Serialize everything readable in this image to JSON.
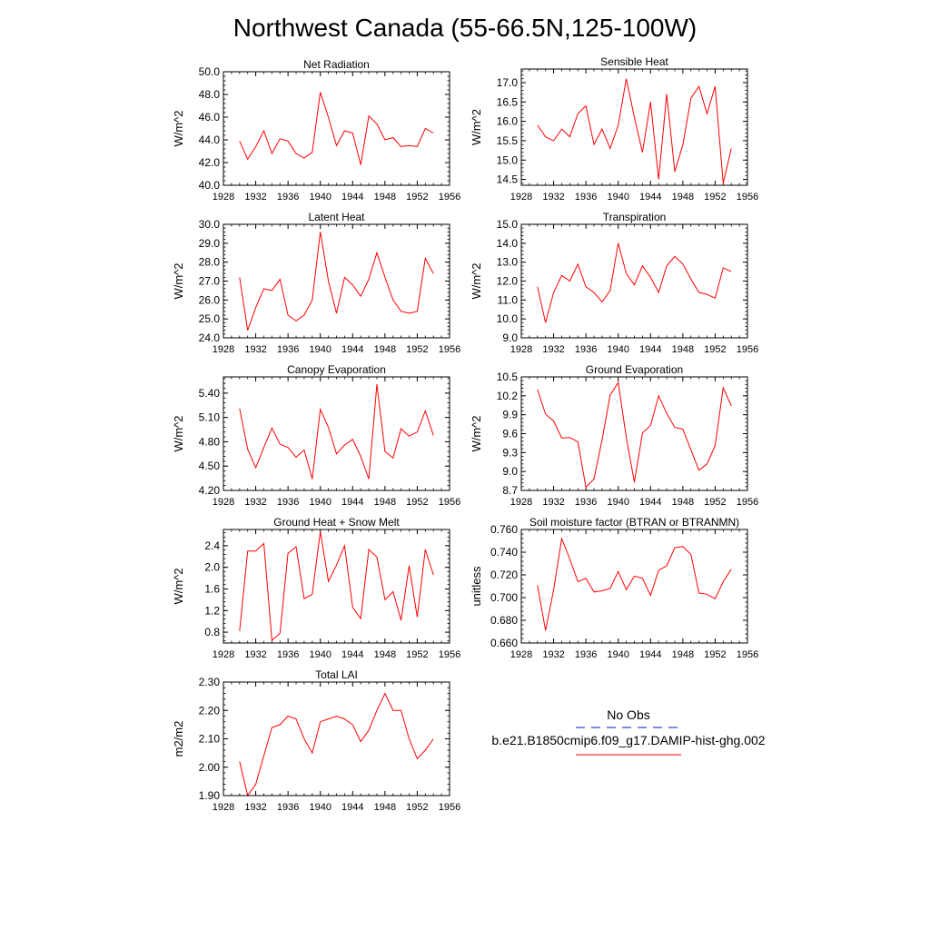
{
  "figure": {
    "title": "Northwest Canada (55-66.5N,125-100W)"
  },
  "legend": {
    "obs_label": "No Obs",
    "model_label": "b.e21.B1850cmip6.f09_g17.DAMIP-hist-ghg.002",
    "obs_color": "#3344cc",
    "model_color": "#ff0000"
  },
  "chart_data": [
    {
      "type": "line",
      "title": "Net Radiation",
      "ylabel": "W/m^2",
      "xlim": [
        1928,
        1956
      ],
      "ylim": [
        40.0,
        50.0
      ],
      "xticks": [
        "1928",
        "1932",
        "1936",
        "1940",
        "1944",
        "1948",
        "1952",
        "1956"
      ],
      "yticks": [
        "40.0",
        "42.0",
        "44.0",
        "46.0",
        "48.0",
        "50.0"
      ],
      "x": [
        1930,
        1931,
        1932,
        1933,
        1934,
        1935,
        1936,
        1937,
        1938,
        1939,
        1940,
        1941,
        1942,
        1943,
        1944,
        1945,
        1946,
        1947,
        1948,
        1949,
        1950,
        1951,
        1952,
        1953,
        1954
      ],
      "series": [
        {
          "values": [
            43.9,
            42.3,
            43.4,
            44.8,
            42.8,
            44.1,
            43.9,
            42.8,
            42.4,
            42.9,
            48.2,
            46.0,
            43.5,
            44.8,
            44.6,
            41.8,
            46.1,
            45.4,
            44.0,
            44.2,
            43.4,
            43.5,
            43.4,
            45.0,
            44.6
          ]
        }
      ]
    },
    {
      "type": "line",
      "title": "Sensible Heat",
      "ylabel": "W/m^2",
      "xlim": [
        1928,
        1956
      ],
      "ylim": [
        14.35,
        17.35
      ],
      "xticks": [
        "1928",
        "1932",
        "1936",
        "1940",
        "1944",
        "1948",
        "1952",
        "1956"
      ],
      "yticks": [
        "14.5",
        "15.0",
        "15.5",
        "16.0",
        "16.5",
        "17.0"
      ],
      "x": [
        1930,
        1931,
        1932,
        1933,
        1934,
        1935,
        1936,
        1937,
        1938,
        1939,
        1940,
        1941,
        1942,
        1943,
        1944,
        1945,
        1946,
        1947,
        1948,
        1949,
        1950,
        1951,
        1952,
        1953,
        1954
      ],
      "series": [
        {
          "values": [
            15.9,
            15.6,
            15.5,
            15.8,
            15.6,
            16.2,
            16.4,
            15.4,
            15.8,
            15.3,
            15.9,
            17.1,
            16.1,
            15.2,
            16.5,
            14.5,
            16.7,
            14.7,
            15.4,
            16.6,
            16.9,
            16.2,
            16.9,
            14.4,
            15.3
          ]
        }
      ]
    },
    {
      "type": "line",
      "title": "Latent Heat",
      "ylabel": "W/m^2",
      "xlim": [
        1928,
        1956
      ],
      "ylim": [
        24.0,
        30.0
      ],
      "xticks": [
        "1928",
        "1932",
        "1936",
        "1940",
        "1944",
        "1948",
        "1952",
        "1956"
      ],
      "yticks": [
        "24.0",
        "25.0",
        "26.0",
        "27.0",
        "28.0",
        "29.0",
        "30.0"
      ],
      "x": [
        1930,
        1931,
        1932,
        1933,
        1934,
        1935,
        1936,
        1937,
        1938,
        1939,
        1940,
        1941,
        1942,
        1943,
        1944,
        1945,
        1946,
        1947,
        1948,
        1949,
        1950,
        1951,
        1952,
        1953,
        1954
      ],
      "series": [
        {
          "values": [
            27.2,
            24.4,
            25.6,
            26.6,
            26.5,
            27.1,
            25.2,
            24.9,
            25.2,
            26.0,
            29.6,
            27.0,
            25.3,
            27.2,
            26.8,
            26.2,
            27.1,
            28.5,
            27.2,
            26.0,
            25.4,
            25.3,
            25.4,
            28.2,
            27.4
          ]
        }
      ]
    },
    {
      "type": "line",
      "title": "Transpiration",
      "ylabel": "W/m^2",
      "xlim": [
        1928,
        1956
      ],
      "ylim": [
        9.0,
        15.0
      ],
      "xticks": [
        "1928",
        "1932",
        "1936",
        "1940",
        "1944",
        "1948",
        "1952",
        "1956"
      ],
      "yticks": [
        "9.0",
        "10.0",
        "11.0",
        "12.0",
        "13.0",
        "14.0",
        "15.0"
      ],
      "x": [
        1930,
        1931,
        1932,
        1933,
        1934,
        1935,
        1936,
        1937,
        1938,
        1939,
        1940,
        1941,
        1942,
        1943,
        1944,
        1945,
        1946,
        1947,
        1948,
        1949,
        1950,
        1951,
        1952,
        1953,
        1954
      ],
      "series": [
        {
          "values": [
            11.7,
            9.8,
            11.4,
            12.3,
            12.0,
            12.9,
            11.7,
            11.4,
            10.9,
            11.5,
            14.0,
            12.4,
            11.8,
            12.8,
            12.2,
            11.4,
            12.8,
            13.3,
            12.9,
            12.1,
            11.4,
            11.3,
            11.1,
            12.7,
            12.5
          ]
        }
      ]
    },
    {
      "type": "line",
      "title": "Canopy Evaporation",
      "ylabel": "W/m^2",
      "xlim": [
        1928,
        1956
      ],
      "ylim": [
        4.2,
        5.6
      ],
      "xticks": [
        "1928",
        "1932",
        "1936",
        "1940",
        "1944",
        "1948",
        "1952",
        "1956"
      ],
      "yticks": [
        "4.20",
        "4.50",
        "4.80",
        "5.10",
        "5.40"
      ],
      "x": [
        1930,
        1931,
        1932,
        1933,
        1934,
        1935,
        1936,
        1937,
        1938,
        1939,
        1940,
        1941,
        1942,
        1943,
        1944,
        1945,
        1946,
        1947,
        1948,
        1949,
        1950,
        1951,
        1952,
        1953,
        1954
      ],
      "series": [
        {
          "values": [
            5.21,
            4.71,
            4.48,
            4.73,
            4.97,
            4.77,
            4.73,
            4.61,
            4.7,
            4.34,
            5.2,
            4.98,
            4.65,
            4.76,
            4.83,
            4.62,
            4.34,
            5.51,
            4.68,
            4.6,
            4.96,
            4.87,
            4.92,
            5.18,
            4.88
          ]
        }
      ]
    },
    {
      "type": "line",
      "title": "Ground Evaporation",
      "ylabel": "W/m^2",
      "xlim": [
        1928,
        1956
      ],
      "ylim": [
        8.7,
        10.5
      ],
      "xticks": [
        "1928",
        "1932",
        "1936",
        "1940",
        "1944",
        "1948",
        "1952",
        "1956"
      ],
      "yticks": [
        "8.7",
        "9.0",
        "9.3",
        "9.6",
        "9.9",
        "10.2",
        "10.5"
      ],
      "x": [
        1930,
        1931,
        1932,
        1933,
        1934,
        1935,
        1936,
        1937,
        1938,
        1939,
        1940,
        1941,
        1942,
        1943,
        1944,
        1945,
        1946,
        1947,
        1948,
        1949,
        1950,
        1951,
        1952,
        1953,
        1954
      ],
      "series": [
        {
          "values": [
            10.3,
            9.91,
            9.8,
            9.53,
            9.54,
            9.47,
            8.75,
            8.88,
            9.5,
            10.21,
            10.41,
            9.54,
            8.83,
            9.61,
            9.73,
            10.2,
            9.92,
            9.7,
            9.67,
            9.34,
            9.02,
            9.12,
            9.41,
            10.33,
            10.04
          ]
        }
      ]
    },
    {
      "type": "line",
      "title": "Ground Heat + Snow Melt",
      "ylabel": "W/m^2",
      "xlim": [
        1928,
        1956
      ],
      "ylim": [
        0.6,
        2.7
      ],
      "xticks": [
        "1928",
        "1932",
        "1936",
        "1940",
        "1944",
        "1948",
        "1952",
        "1956"
      ],
      "yticks": [
        "0.8",
        "1.2",
        "1.6",
        "2.0",
        "2.4"
      ],
      "x": [
        1930,
        1931,
        1932,
        1933,
        1934,
        1935,
        1936,
        1937,
        1938,
        1939,
        1940,
        1941,
        1942,
        1943,
        1944,
        1945,
        1946,
        1947,
        1948,
        1949,
        1950,
        1951,
        1952,
        1953,
        1954
      ],
      "series": [
        {
          "values": [
            0.82,
            2.3,
            2.3,
            2.44,
            0.65,
            0.78,
            2.26,
            2.38,
            1.42,
            1.5,
            2.66,
            1.74,
            2.04,
            2.4,
            1.26,
            1.05,
            2.33,
            2.19,
            1.4,
            1.55,
            1.02,
            2.03,
            1.08,
            2.33,
            1.86
          ]
        }
      ]
    },
    {
      "type": "line",
      "title": "Soil moisture factor (BTRAN or BTRANMN)",
      "ylabel": "unitless",
      "xlim": [
        1928,
        1956
      ],
      "ylim": [
        0.66,
        0.76
      ],
      "xticks": [
        "1928",
        "1932",
        "1936",
        "1940",
        "1944",
        "1948",
        "1952",
        "1956"
      ],
      "yticks": [
        "0.660",
        "0.680",
        "0.700",
        "0.720",
        "0.740",
        "0.760"
      ],
      "x": [
        1930,
        1931,
        1932,
        1933,
        1934,
        1935,
        1936,
        1937,
        1938,
        1939,
        1940,
        1941,
        1942,
        1943,
        1944,
        1945,
        1946,
        1947,
        1948,
        1949,
        1950,
        1951,
        1952,
        1953,
        1954
      ],
      "series": [
        {
          "values": [
            0.711,
            0.671,
            0.707,
            0.752,
            0.734,
            0.714,
            0.717,
            0.705,
            0.706,
            0.708,
            0.723,
            0.707,
            0.719,
            0.717,
            0.702,
            0.724,
            0.728,
            0.744,
            0.745,
            0.738,
            0.704,
            0.703,
            0.699,
            0.714,
            0.725
          ]
        }
      ]
    },
    {
      "type": "line",
      "title": "Total LAI",
      "ylabel": "m2/m2",
      "xlim": [
        1928,
        1956
      ],
      "ylim": [
        1.9,
        2.3
      ],
      "xticks": [
        "1928",
        "1932",
        "1936",
        "1940",
        "1944",
        "1948",
        "1952",
        "1956"
      ],
      "yticks": [
        "1.90",
        "2.00",
        "2.10",
        "2.20",
        "2.30"
      ],
      "x": [
        1930,
        1931,
        1932,
        1933,
        1934,
        1935,
        1936,
        1937,
        1938,
        1939,
        1940,
        1941,
        1942,
        1943,
        1944,
        1945,
        1946,
        1947,
        1948,
        1949,
        1950,
        1951,
        1952,
        1953,
        1954
      ],
      "series": [
        {
          "values": [
            2.02,
            1.9,
            1.94,
            2.04,
            2.14,
            2.15,
            2.18,
            2.17,
            2.1,
            2.05,
            2.16,
            2.17,
            2.18,
            2.17,
            2.15,
            2.09,
            2.13,
            2.2,
            2.26,
            2.2,
            2.2,
            2.1,
            2.03,
            2.06,
            2.1
          ]
        }
      ]
    }
  ]
}
